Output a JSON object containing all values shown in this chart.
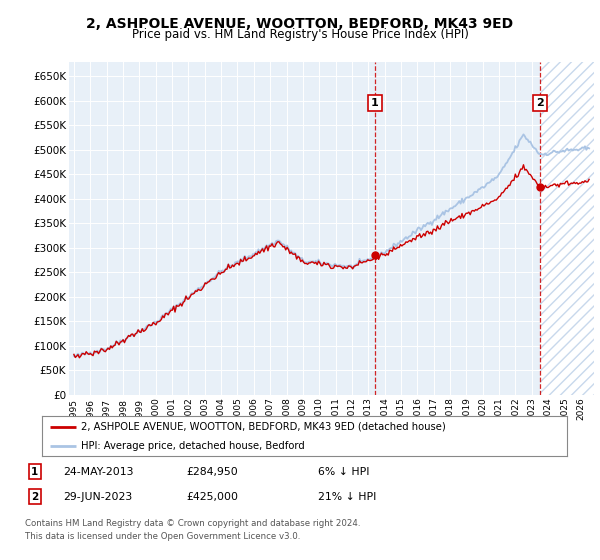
{
  "title": "2, ASHPOLE AVENUE, WOOTTON, BEDFORD, MK43 9ED",
  "subtitle": "Price paid vs. HM Land Registry's House Price Index (HPI)",
  "ylim": [
    0,
    680000
  ],
  "yticks": [
    0,
    50000,
    100000,
    150000,
    200000,
    250000,
    300000,
    350000,
    400000,
    450000,
    500000,
    550000,
    600000,
    650000
  ],
  "ytick_labels": [
    "£0",
    "£50K",
    "£100K",
    "£150K",
    "£200K",
    "£250K",
    "£300K",
    "£350K",
    "£400K",
    "£450K",
    "£500K",
    "£550K",
    "£600K",
    "£650K"
  ],
  "sale1_date": 2013.38,
  "sale1_price": 284950,
  "sale1_label": "1",
  "sale1_display": "24-MAY-2013",
  "sale1_price_display": "£284,950",
  "sale1_hpi": "6% ↓ HPI",
  "sale2_date": 2023.49,
  "sale2_price": 425000,
  "sale2_label": "2",
  "sale2_display": "29-JUN-2023",
  "sale2_price_display": "£425,000",
  "sale2_hpi": "21% ↓ HPI",
  "hpi_color": "#aac4e4",
  "price_color": "#cc0000",
  "legend_line1": "2, ASHPOLE AVENUE, WOOTTON, BEDFORD, MK43 9ED (detached house)",
  "legend_line2": "HPI: Average price, detached house, Bedford",
  "footer1": "Contains HM Land Registry data © Crown copyright and database right 2024.",
  "footer2": "This data is licensed under the Open Government Licence v3.0.",
  "bg_color": "#e8f0f8",
  "hatch_color": "#c8d8ec",
  "box_color": "#cc0000",
  "start_year": 1995.0,
  "end_year": 2026.5,
  "xlim_left": 1994.7,
  "xlim_right": 2026.8
}
